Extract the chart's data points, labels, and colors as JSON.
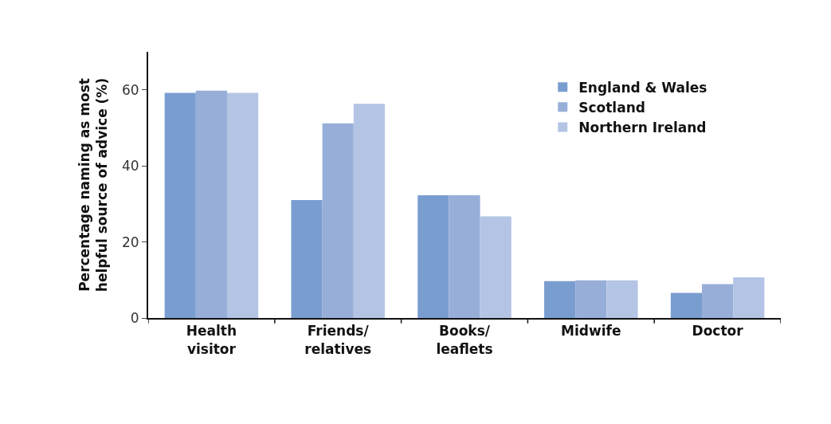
{
  "chart_data": {
    "type": "bar",
    "ylabel": "Percentage naming as most\nhelpful source of advice (%)",
    "categories": [
      "Health\nvisitor",
      "Friends/\nrelatives",
      "Books/\nleaflets",
      "Midwife",
      "Doctor"
    ],
    "series": [
      {
        "name": "England & Wales",
        "color": "#7a9dd0",
        "values": [
          59.2,
          31.0,
          32.3,
          9.7,
          6.6
        ]
      },
      {
        "name": "Scotland",
        "color": "#97aed8",
        "values": [
          59.8,
          51.2,
          32.3,
          9.9,
          8.9
        ]
      },
      {
        "name": "Northern Ireland",
        "color": "#b4c4e4",
        "values": [
          59.2,
          56.3,
          26.7,
          9.9,
          10.7
        ]
      }
    ],
    "ylim": [
      0,
      70
    ],
    "yticks": [
      0,
      20,
      40,
      60
    ],
    "legend": "top right"
  }
}
